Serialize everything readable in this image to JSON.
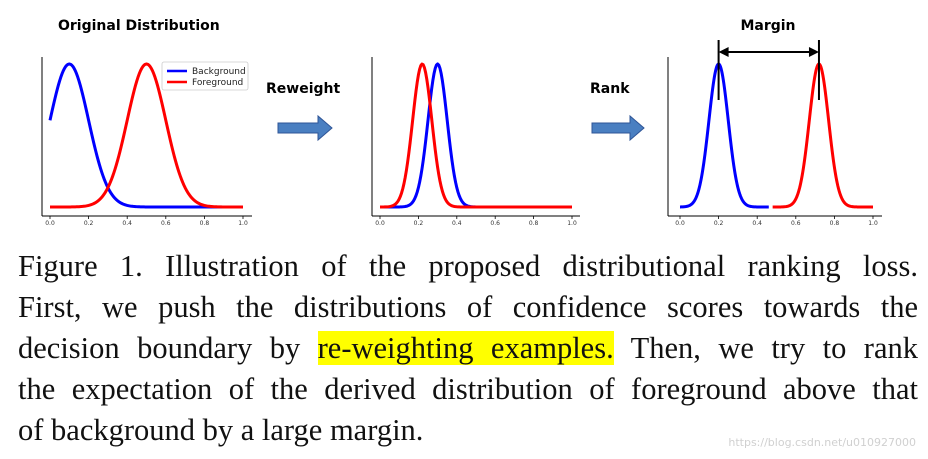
{
  "figure": {
    "panel_titles": {
      "original": "Original Distribution",
      "margin": "Margin"
    },
    "arrow_labels": {
      "reweight": "Reweight",
      "rank": "Rank"
    },
    "colors": {
      "background": "#0000ff",
      "foreground": "#ff0000",
      "arrow_fill": "#4a7fc1",
      "arrow_stroke": "#2f5597"
    }
  },
  "chart_data": [
    {
      "type": "line",
      "title": "Original Distribution",
      "xlim": [
        0.0,
        1.0
      ],
      "x_ticks": [
        "0.0",
        "0.2",
        "0.4",
        "0.6",
        "0.8",
        "1.0"
      ],
      "legend_position": "top-right",
      "series": [
        {
          "name": "Background",
          "color": "#0000ff",
          "mean": 0.1,
          "std": 0.1,
          "x_range": [
            0.0,
            1.0
          ]
        },
        {
          "name": "Foreground",
          "color": "#ff0000",
          "mean": 0.5,
          "std": 0.1,
          "x_range": [
            0.0,
            1.0
          ]
        }
      ]
    },
    {
      "type": "line",
      "xlim": [
        0.0,
        1.0
      ],
      "x_ticks": [
        "0.0",
        "0.2",
        "0.4",
        "0.6",
        "0.8",
        "1.0"
      ],
      "series": [
        {
          "color": "#0000ff",
          "mean": 0.3,
          "std": 0.05,
          "x_range": [
            0.0,
            1.0
          ]
        },
        {
          "color": "#ff0000",
          "mean": 0.22,
          "std": 0.05,
          "x_range": [
            0.0,
            1.0
          ]
        }
      ]
    },
    {
      "type": "line",
      "title": "Margin",
      "xlim": [
        0.0,
        1.0
      ],
      "x_ticks": [
        "0.0",
        "0.2",
        "0.4",
        "0.6",
        "0.8",
        "1.0"
      ],
      "annotation": {
        "label": "Margin",
        "from": 0.2,
        "to": 0.72
      },
      "series": [
        {
          "color": "#0000ff",
          "mean": 0.2,
          "std": 0.05,
          "x_range": [
            0.0,
            0.46
          ]
        },
        {
          "color": "#ff0000",
          "mean": 0.72,
          "std": 0.05,
          "x_range": [
            0.48,
            1.0
          ]
        }
      ]
    }
  ],
  "caption": {
    "line1": "Figure 1. Illustration of the proposed distributional ranking loss.",
    "line2": "First, we push the distributions of confidence scores towards the",
    "line3_before": "decision boundary by ",
    "line3_highlight": "re-weighting examples.",
    "line3_after": " Then, we try to rank",
    "line4": "the expectation of the derived distribution of foreground above that",
    "line5": "of background by a large margin."
  },
  "watermark": "https://blog.csdn.net/u010927000"
}
